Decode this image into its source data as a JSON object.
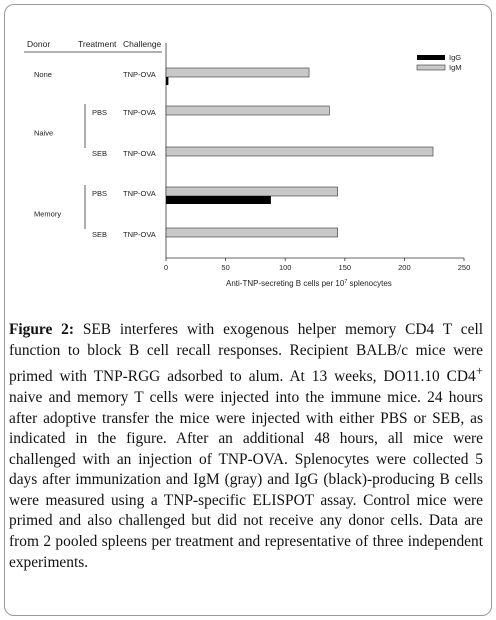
{
  "figure": {
    "caption_label": "Figure 2:",
    "caption_body_1": " SEB interferes with exogenous helper memory CD4 T cell function to block B cell recall responses. Recipient BALB/c mice were primed with TNP-RGG adsorbed to alum. At 13 weeks, DO11.10 CD4",
    "caption_sup": "+",
    "caption_body_2": " naive and memory T cells were injected into the immune mice. 24 hours after adoptive transfer the mice were injected with either PBS or SEB, as indicated in the figure. After an additional 48 hours, all mice were challenged with an injection of TNP-OVA. Splenocytes were collected 5 days after immunization and IgM (gray) and IgG (black)-producing B cells were measured using a TNP-specific ELISPOT assay. Control mice were primed and also challenged but did not receive any donor cells. Data are from 2 pooled spleens per treatment and representative of three independent experiments."
  },
  "chart_data": {
    "type": "bar",
    "orientation": "horizontal",
    "column_headers": [
      "Donor",
      "Treatment",
      "Challenge"
    ],
    "groups": [
      {
        "donor": "None",
        "treatment": "",
        "challenge": "TNP-OVA",
        "IgG": 2,
        "IgM": 120
      },
      {
        "donor": "Naive",
        "treatment": "PBS",
        "challenge": "TNP-OVA",
        "IgG": 0,
        "IgM": 137
      },
      {
        "donor": "Naive",
        "treatment": "SEB",
        "challenge": "TNP-OVA",
        "IgG": 0,
        "IgM": 224
      },
      {
        "donor": "Memory",
        "treatment": "PBS",
        "challenge": "TNP-OVA",
        "IgG": 88,
        "IgM": 144
      },
      {
        "donor": "Memory",
        "treatment": "SEB",
        "challenge": "TNP-OVA",
        "IgG": 0,
        "IgM": 144
      }
    ],
    "series": [
      {
        "name": "IgG",
        "color": "#000000"
      },
      {
        "name": "IgM",
        "color": "#c8c8c8"
      }
    ],
    "xlim": [
      0,
      250
    ],
    "xticks": [
      0,
      50,
      100,
      150,
      200,
      250
    ],
    "xlabel_main": "Anti-TNP-secreting B cells per 10",
    "xlabel_sup": "7",
    "xlabel_end": " splenocytes",
    "legend": "top-right",
    "grid": false
  }
}
